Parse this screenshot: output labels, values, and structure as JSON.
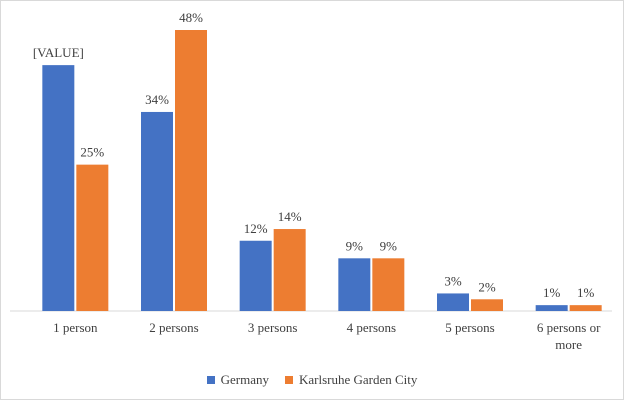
{
  "chart_data": {
    "type": "bar",
    "categories": [
      "1 person",
      "2 persons",
      "3 persons",
      "4 persons",
      "5 persons",
      "6 persons or more"
    ],
    "series": [
      {
        "name": "Germany",
        "color": "#4472c4",
        "values": [
          42,
          34,
          12,
          9,
          3,
          1
        ],
        "value_labels": [
          "[VALUE]",
          "34%",
          "12%",
          "9%",
          "3%",
          "1%"
        ]
      },
      {
        "name": "Karlsruhe Garden City",
        "color": "#ed7d31",
        "values": [
          25,
          48,
          14,
          9,
          2,
          1
        ],
        "value_labels": [
          "25%",
          "48%",
          "14%",
          "9%",
          "2%",
          "1%"
        ]
      }
    ],
    "legend": "bottom"
  }
}
